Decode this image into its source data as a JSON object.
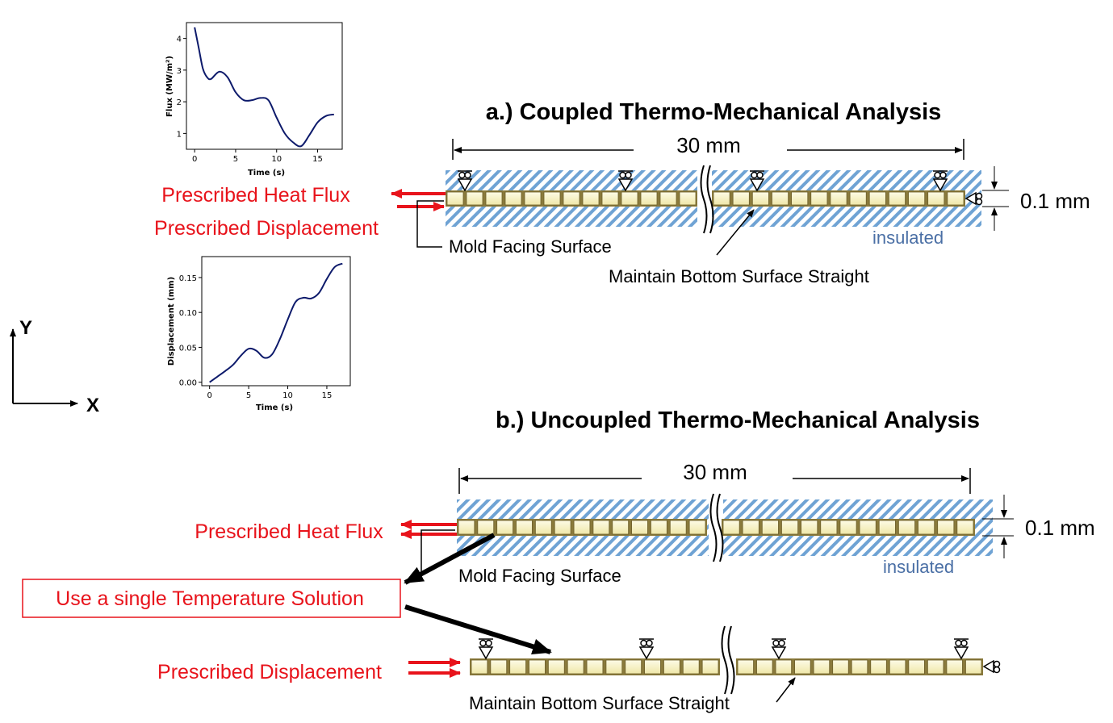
{
  "panel_a": {
    "title": "a.) Coupled Thermo-Mechanical  Analysis",
    "length": "30 mm",
    "thickness": "0.1 mm",
    "heat_flux_label": "Prescribed Heat Flux",
    "displacement_label": "Prescribed Displacement",
    "mold_label": "Mold Facing Surface",
    "bottom_label": "Maintain Bottom Surface Straight",
    "insulated_label": "insulated"
  },
  "panel_b": {
    "title": "b.) Uncoupled Thermo-Mechanical  Analysis",
    "length": "30 mm",
    "thickness": "0.1 mm",
    "heat_flux_label": "Prescribed Heat Flux",
    "mold_label": "Mold Facing Surface",
    "insulated_label": "insulated",
    "single_temp_label": "Use a single Temperature Solution",
    "displacement_label": "Prescribed Displacement",
    "bottom_label": "Maintain Bottom Surface Straight"
  },
  "axes_indicator": {
    "y": "Y",
    "x": "X"
  },
  "colors": {
    "red": "#e8131b",
    "hatch": "#6fa3d4",
    "element_fill": "#f7f3c8",
    "curve": "#0d1a6b"
  },
  "chart_data": [
    {
      "type": "line",
      "xlabel": "Time (s)",
      "ylabel": "Flux (MW/m²)",
      "xlim": [
        -1,
        18
      ],
      "ylim": [
        0.5,
        4.5
      ],
      "xticks": [
        "0",
        "5",
        "10",
        "15"
      ],
      "yticks": [
        "1",
        "2",
        "3",
        "4"
      ],
      "x": [
        0,
        0.5,
        1,
        1.5,
        2,
        3,
        4,
        5,
        6,
        7,
        8,
        9,
        10,
        11,
        12,
        13,
        14,
        15,
        16,
        17
      ],
      "y": [
        4.35,
        3.7,
        3.05,
        2.78,
        2.72,
        2.95,
        2.78,
        2.3,
        2.05,
        2.05,
        2.12,
        2.05,
        1.5,
        1.0,
        0.72,
        0.6,
        0.95,
        1.35,
        1.55,
        1.6
      ]
    },
    {
      "type": "line",
      "xlabel": "Time (s)",
      "ylabel": "Displacement (mm)",
      "xlim": [
        -1,
        18
      ],
      "ylim": [
        -0.005,
        0.18
      ],
      "xticks": [
        "0",
        "5",
        "10",
        "15"
      ],
      "yticks": [
        "0.00",
        "0.05",
        "0.10",
        "0.15"
      ],
      "x": [
        0,
        1,
        2,
        3,
        4,
        5,
        6,
        7,
        8,
        9,
        10,
        11,
        12,
        13,
        14,
        15,
        16,
        17
      ],
      "y": [
        0.0,
        0.008,
        0.016,
        0.025,
        0.038,
        0.048,
        0.045,
        0.035,
        0.04,
        0.062,
        0.09,
        0.115,
        0.121,
        0.12,
        0.128,
        0.148,
        0.165,
        0.17
      ]
    }
  ]
}
